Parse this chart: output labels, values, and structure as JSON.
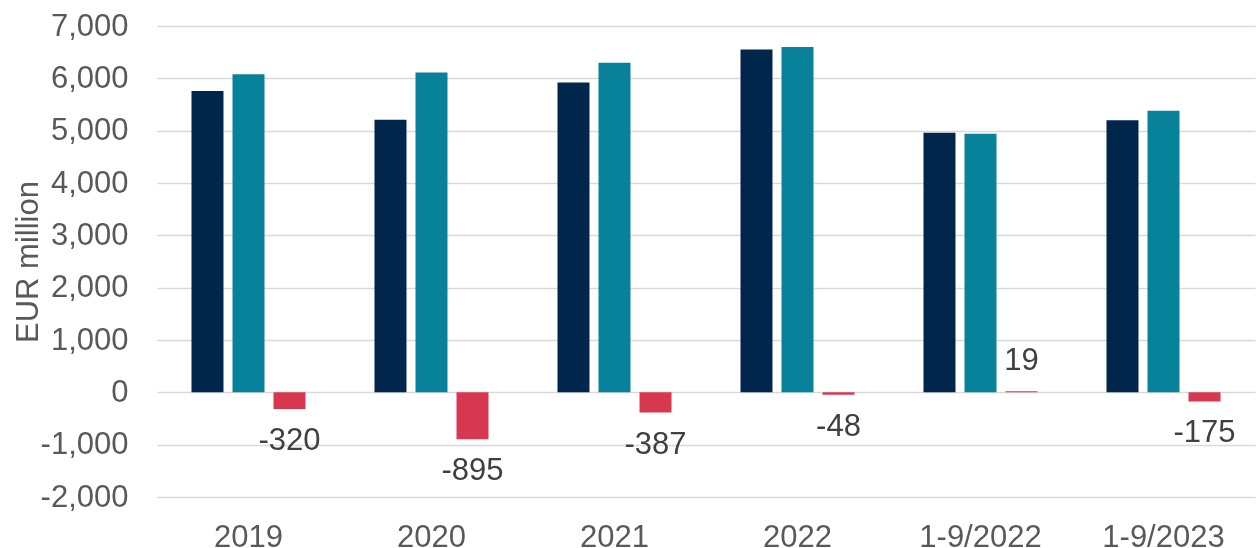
{
  "chart_data": {
    "type": "bar",
    "ylabel": "EUR million",
    "categories": [
      "2019",
      "2020",
      "2021",
      "2022",
      "1-9/2022",
      "1-9/2023"
    ],
    "series": [
      {
        "color": "#00264b",
        "values": [
          5760,
          5210,
          5920,
          6550,
          4960,
          5200
        ]
      },
      {
        "color": "#08829a",
        "values": [
          6080,
          6110,
          6300,
          6600,
          4940,
          5380
        ]
      },
      {
        "color": "#d7384f",
        "values": [
          -320,
          -895,
          -387,
          -48,
          19,
          -175
        ],
        "value_labels": [
          "-320",
          "-895",
          "-387",
          "-48",
          "19",
          "-175"
        ]
      }
    ],
    "ylim": [
      -2000,
      7000
    ],
    "yticks": [
      {
        "value": -2000,
        "label": "-2,000"
      },
      {
        "value": -1000,
        "label": "-1,000"
      },
      0,
      {
        "value": 1000,
        "label": "1,000"
      },
      {
        "value": 2000,
        "label": "2,000"
      },
      {
        "value": 3000,
        "label": "3,000"
      },
      {
        "value": 4000,
        "label": "4,000"
      },
      {
        "value": 5000,
        "label": "5,000"
      },
      {
        "value": 6000,
        "label": "6,000"
      },
      {
        "value": 7000,
        "label": "7,000"
      }
    ],
    "grid": "y"
  }
}
